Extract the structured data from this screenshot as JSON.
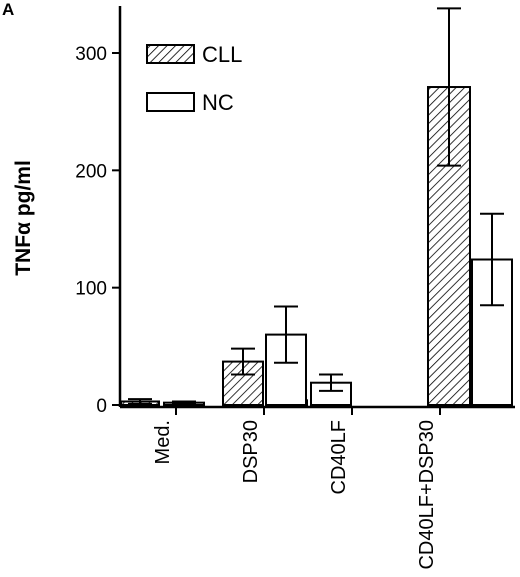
{
  "panel_label": "A",
  "chart_data": {
    "type": "bar",
    "categories": [
      "Med.",
      "DSP30",
      "CD40LF",
      "CD40LF+DSP30"
    ],
    "series": [
      {
        "name": "CLL",
        "pattern": "hatched",
        "values": [
          3,
          37,
          4,
          271
        ],
        "errors": [
          2,
          11,
          2,
          67
        ]
      },
      {
        "name": "NC",
        "pattern": "open",
        "values": [
          2,
          60,
          19,
          124
        ],
        "errors": [
          1,
          24,
          7,
          39
        ]
      }
    ],
    "ylabel": "TNFα pg/ml",
    "xlabel": "",
    "ylim": [
      0,
      340
    ],
    "yticks": [
      0,
      100,
      200,
      300
    ],
    "legend_position": "top-left",
    "grid": false,
    "colors": {
      "bar_stroke": "#000000",
      "bar_fill": "#ffffff",
      "hatch": "#000000"
    }
  }
}
